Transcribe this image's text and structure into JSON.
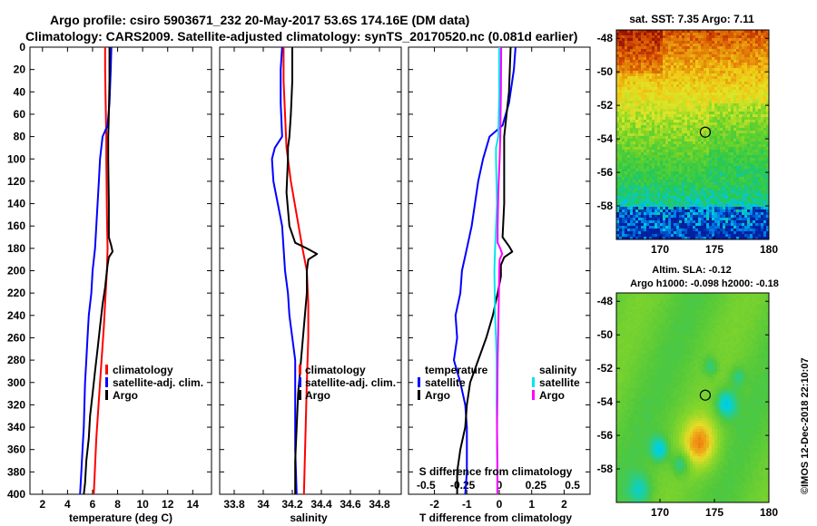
{
  "title": {
    "line1": "Argo profile: csiro 5903671_232 20-May-2017 53.6S 174.16E (DM data)",
    "line2": "Climatology: CARS2009. Satellite-adjusted climatology: synTS_20170520.nc (0.081d earlier)"
  },
  "colors": {
    "climatology": "#ff0000",
    "satellite": "#0000ff",
    "argo": "#000000",
    "sal_satellite": "#00e5ee",
    "sal_argo": "#ff00ff"
  },
  "chart_data": [
    {
      "type": "line",
      "name": "temperature",
      "xlabel": "temperature (deg C)",
      "ylabel": "",
      "xlim": [
        1,
        15.5
      ],
      "ylim": [
        400,
        0
      ],
      "xticks": [
        "2",
        "4",
        "6",
        "8",
        "10",
        "12",
        "14"
      ],
      "yticks": [
        "0",
        "20",
        "40",
        "60",
        "80",
        "100",
        "120",
        "140",
        "160",
        "180",
        "200",
        "220",
        "240",
        "260",
        "280",
        "300",
        "320",
        "340",
        "360",
        "380",
        "400"
      ],
      "legend": {
        "position": "bottom-right",
        "entries": [
          "climatology",
          "satellite-adj. clim.",
          "Argo"
        ]
      },
      "series": [
        {
          "name": "climatology",
          "color": "#ff0000",
          "depth": [
            0,
            20,
            50,
            80,
            100,
            150,
            180,
            200,
            220,
            250,
            300,
            350,
            400
          ],
          "values": [
            7.0,
            7.0,
            7.05,
            7.1,
            7.1,
            7.15,
            7.2,
            7.15,
            7.05,
            6.9,
            6.6,
            6.3,
            6.1
          ]
        },
        {
          "name": "satellite-adj. clim.",
          "color": "#0000ff",
          "depth": [
            0,
            20,
            50,
            70,
            80,
            100,
            120,
            140,
            160,
            180,
            200,
            220,
            240,
            260,
            280,
            300,
            320,
            340,
            360,
            380,
            400
          ],
          "values": [
            7.5,
            7.45,
            7.35,
            7.2,
            6.8,
            6.6,
            6.5,
            6.4,
            6.3,
            6.2,
            6.0,
            5.9,
            5.7,
            5.6,
            5.5,
            5.4,
            5.35,
            5.3,
            5.2,
            5.1,
            5.0
          ]
        },
        {
          "name": "Argo",
          "color": "#000000",
          "depth": [
            0,
            30,
            60,
            80,
            100,
            140,
            170,
            178,
            183,
            188,
            195,
            205,
            215,
            230,
            250,
            270,
            290,
            310,
            330,
            350,
            370,
            390,
            400
          ],
          "values": [
            7.35,
            7.35,
            7.3,
            7.25,
            7.25,
            7.3,
            7.3,
            7.5,
            7.6,
            7.3,
            7.2,
            7.1,
            7.0,
            6.8,
            6.6,
            6.4,
            6.2,
            6.0,
            5.8,
            5.7,
            5.5,
            5.4,
            5.3
          ]
        }
      ]
    },
    {
      "type": "line",
      "name": "salinity",
      "xlabel": "salinity",
      "ylabel": "",
      "xlim": [
        33.7,
        34.95
      ],
      "ylim": [
        400,
        0
      ],
      "xticks": [
        "33.8",
        "34",
        "34.2",
        "34.4",
        "34.6",
        "34.8"
      ],
      "legend": {
        "position": "bottom-right",
        "entries": [
          "climatology",
          "satellite-adj. clim.",
          "Argo"
        ]
      },
      "series": [
        {
          "name": "climatology",
          "color": "#ff0000",
          "depth": [
            0,
            30,
            60,
            90,
            120,
            150,
            180,
            200,
            230,
            260,
            300,
            350,
            400
          ],
          "values": [
            34.14,
            34.14,
            34.15,
            34.16,
            34.19,
            34.23,
            34.27,
            34.3,
            34.31,
            34.31,
            34.3,
            34.29,
            34.28
          ]
        },
        {
          "name": "satellite-adj. clim.",
          "color": "#0000ff",
          "depth": [
            0,
            20,
            50,
            80,
            90,
            100,
            120,
            140,
            160,
            180,
            200,
            220,
            240,
            260,
            280,
            300,
            330,
            360,
            400
          ],
          "values": [
            34.13,
            34.12,
            34.12,
            34.13,
            34.08,
            34.06,
            34.07,
            34.1,
            34.13,
            34.14,
            34.15,
            34.17,
            34.18,
            34.2,
            34.22,
            34.22,
            34.22,
            34.22,
            34.23
          ]
        },
        {
          "name": "Argo",
          "color": "#000000",
          "depth": [
            0,
            30,
            60,
            80,
            90,
            100,
            130,
            160,
            175,
            180,
            185,
            190,
            200,
            220,
            250,
            280,
            310,
            340,
            370,
            400
          ],
          "values": [
            34.2,
            34.2,
            34.19,
            34.18,
            34.17,
            34.17,
            34.16,
            34.18,
            34.22,
            34.3,
            34.37,
            34.31,
            34.3,
            34.3,
            34.28,
            34.26,
            34.24,
            34.23,
            34.22,
            34.22
          ]
        }
      ]
    },
    {
      "type": "line",
      "name": "difference",
      "xlabel": "T difference from climatology",
      "xlabel_top": "S difference from climatology",
      "xlim": [
        -2.8,
        2.8
      ],
      "ylim": [
        400,
        0
      ],
      "xticks": [
        "-2",
        "-1",
        "0",
        "1",
        "2"
      ],
      "xticks_top": [
        "-0.5",
        "-0.25",
        "0",
        "0.25",
        "0.5"
      ],
      "legend": {
        "position": "bottom",
        "groups": [
          {
            "heading": "temperature",
            "entries": [
              "satellite",
              "Argo"
            ]
          },
          {
            "heading": "salinity",
            "entries": [
              "satellite",
              "Argo"
            ]
          }
        ]
      },
      "series": [
        {
          "name": "temperature satellite",
          "color": "#0000ff",
          "depth": [
            0,
            20,
            50,
            70,
            80,
            100,
            120,
            140,
            160,
            180,
            200,
            220,
            240,
            260,
            280,
            300,
            320,
            340,
            360,
            380,
            400
          ],
          "values": [
            0.5,
            0.45,
            0.3,
            0.1,
            -0.3,
            -0.5,
            -0.65,
            -0.75,
            -0.85,
            -1.0,
            -1.15,
            -1.2,
            -1.35,
            -1.3,
            -1.4,
            -1.2,
            -1.05,
            -1.0,
            -1.0,
            -1.0,
            -1.05
          ]
        },
        {
          "name": "temperature Argo",
          "color": "#000000",
          "depth": [
            0,
            40,
            80,
            100,
            140,
            170,
            178,
            183,
            188,
            195,
            205,
            220,
            240,
            260,
            280,
            300,
            320,
            340,
            360,
            380,
            400
          ],
          "values": [
            0.35,
            0.3,
            0.15,
            0.15,
            0.15,
            0.1,
            0.3,
            0.4,
            0.15,
            0.05,
            0.05,
            -0.05,
            -0.2,
            -0.4,
            -0.65,
            -0.9,
            -1.0,
            -1.05,
            -1.2,
            -1.3,
            -1.3
          ]
        },
        {
          "name": "salinity satellite",
          "color": "#00e5ee",
          "depth": [
            0,
            40,
            80,
            90,
            100,
            140,
            180,
            200,
            220,
            240,
            260,
            280,
            300,
            320,
            340,
            360,
            380,
            400
          ],
          "values": [
            0.0,
            0.0,
            -0.03,
            -0.1,
            -0.1,
            -0.07,
            -0.13,
            -0.15,
            -0.14,
            -0.13,
            -0.1,
            -0.08,
            -0.08,
            -0.08,
            -0.07,
            -0.07,
            -0.06,
            -0.06
          ]
        },
        {
          "name": "salinity Argo",
          "color": "#ff00ff",
          "depth": [
            0,
            40,
            80,
            100,
            130,
            160,
            175,
            180,
            185,
            190,
            200,
            220,
            250,
            280,
            310,
            340,
            370,
            400
          ],
          "values": [
            0.06,
            0.05,
            0.03,
            0.01,
            -0.03,
            -0.05,
            -0.05,
            0.03,
            0.09,
            0.01,
            0.0,
            -0.01,
            -0.03,
            -0.05,
            -0.06,
            -0.07,
            -0.06,
            -0.06
          ]
        }
      ]
    },
    {
      "type": "heatmap",
      "name": "sst_map",
      "title": "sat. SST: 7.35 Argo: 7.11",
      "xticks": [
        "170",
        "175",
        "180"
      ],
      "yticks": [
        "-48",
        "-50",
        "-52",
        "-54",
        "-56",
        "-58"
      ],
      "xlim": [
        166,
        180
      ],
      "ylim": [
        -60,
        -47.5
      ],
      "marker": {
        "lon": 174.16,
        "lat": -53.6
      }
    },
    {
      "type": "heatmap",
      "name": "sla_map",
      "title": "Altim. SLA: -0.12",
      "subtitle": "Argo h1000: -0.098 h2000: -0.18",
      "xticks": [
        "170",
        "175",
        "180"
      ],
      "yticks": [
        "-48",
        "-50",
        "-52",
        "-54",
        "-56",
        "-58"
      ],
      "xlim": [
        166,
        180
      ],
      "ylim": [
        -60,
        -47.5
      ],
      "marker": {
        "lon": 174.16,
        "lat": -53.6
      }
    }
  ],
  "watermark": "©IMOS 12-Dec-2018 22:10:07"
}
